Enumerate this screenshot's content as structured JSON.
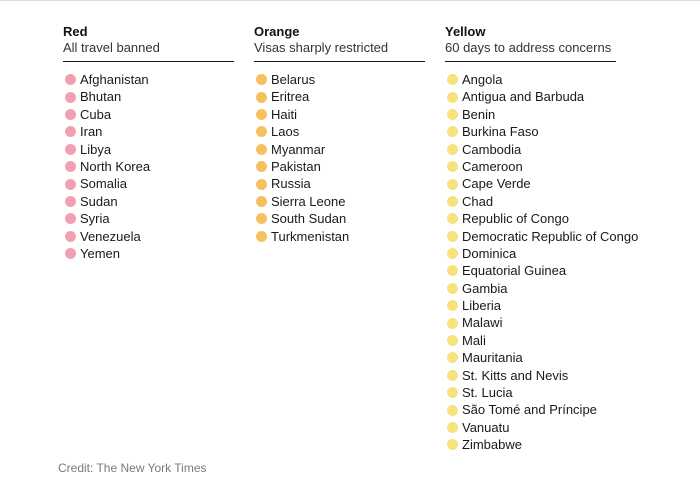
{
  "columns": [
    {
      "title": "Red",
      "subtitle": "All travel banned",
      "dot_color": "#f0a1b1",
      "countries": [
        "Afghanistan",
        "Bhutan",
        "Cuba",
        "Iran",
        "Libya",
        "North Korea",
        "Somalia",
        "Sudan",
        "Syria",
        "Venezuela",
        "Yemen"
      ]
    },
    {
      "title": "Orange",
      "subtitle": "Visas sharply restricted",
      "dot_color": "#f6c05e",
      "countries": [
        "Belarus",
        "Eritrea",
        "Haiti",
        "Laos",
        "Myanmar",
        "Pakistan",
        "Russia",
        "Sierra Leone",
        "South Sudan",
        "Turkmenistan"
      ]
    },
    {
      "title": "Yellow",
      "subtitle": "60 days to address concerns",
      "dot_color": "#f7e27c",
      "countries": [
        "Angola",
        "Antigua and Barbuda",
        "Benin",
        "Burkina Faso",
        "Cambodia",
        "Cameroon",
        "Cape Verde",
        "Chad",
        "Republic of Congo",
        "Democratic Republic of Congo",
        "Dominica",
        "Equatorial Guinea",
        "Gambia",
        "Liberia",
        "Malawi",
        "Mali",
        "Mauritania",
        "St. Kitts and Nevis",
        "St. Lucia",
        "São Tomé and Príncipe",
        "Vanuatu",
        "Zimbabwe"
      ]
    }
  ],
  "credit": "Credit: The New York Times"
}
